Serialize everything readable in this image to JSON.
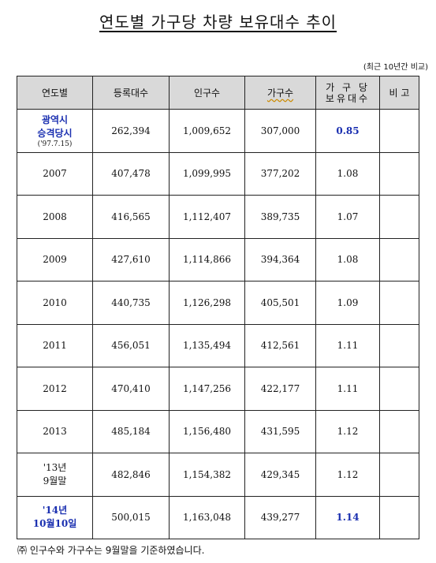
{
  "title": "연도별 가구당 차량 보유대수 추이",
  "note": "(최근 10년간 비교)",
  "headers": {
    "year": "연도별",
    "registered": "등록대수",
    "population": "인구수",
    "households": "가구수",
    "per_household_line1": "가 구 당",
    "per_household_line2": "보유대수",
    "remarks": "비 고"
  },
  "rows": [
    {
      "year_line1": "광역시",
      "year_line2": "승격당시",
      "year_sub": "('97.7.15)",
      "registered": "262,394",
      "population": "1,009,652",
      "households": "307,000",
      "per_household": "0.85",
      "remarks": ""
    },
    {
      "year_line1": "2007",
      "registered": "407,478",
      "population": "1,099,995",
      "households": "377,202",
      "per_household": "1.08",
      "remarks": ""
    },
    {
      "year_line1": "2008",
      "registered": "416,565",
      "population": "1,112,407",
      "households": "389,735",
      "per_household": "1.07",
      "remarks": ""
    },
    {
      "year_line1": "2009",
      "registered": "427,610",
      "population": "1,114,866",
      "households": "394,364",
      "per_household": "1.08",
      "remarks": ""
    },
    {
      "year_line1": "2010",
      "registered": "440,735",
      "population": "1,126,298",
      "households": "405,501",
      "per_household": "1.09",
      "remarks": ""
    },
    {
      "year_line1": "2011",
      "registered": "456,051",
      "population": "1,135,494",
      "households": "412,561",
      "per_household": "1.11",
      "remarks": ""
    },
    {
      "year_line1": "2012",
      "registered": "470,410",
      "population": "1,147,256",
      "households": "422,177",
      "per_household": "1.11",
      "remarks": ""
    },
    {
      "year_line1": "2013",
      "registered": "485,184",
      "population": "1,156,480",
      "households": "431,595",
      "per_household": "1.12",
      "remarks": ""
    },
    {
      "year_line1": "'13년",
      "year_line2": "9월말",
      "registered": "482,846",
      "population": "1,154,382",
      "households": "429,345",
      "per_household": "1.12",
      "remarks": ""
    },
    {
      "year_line1": "'14년",
      "year_line2": "10월10일",
      "registered": "500,015",
      "population": "1,163,048",
      "households": "439,277",
      "per_household": "1.14",
      "remarks": ""
    }
  ],
  "footnote": "㈜ 인구수와 가구수는 9월말을 기준하였습니다."
}
